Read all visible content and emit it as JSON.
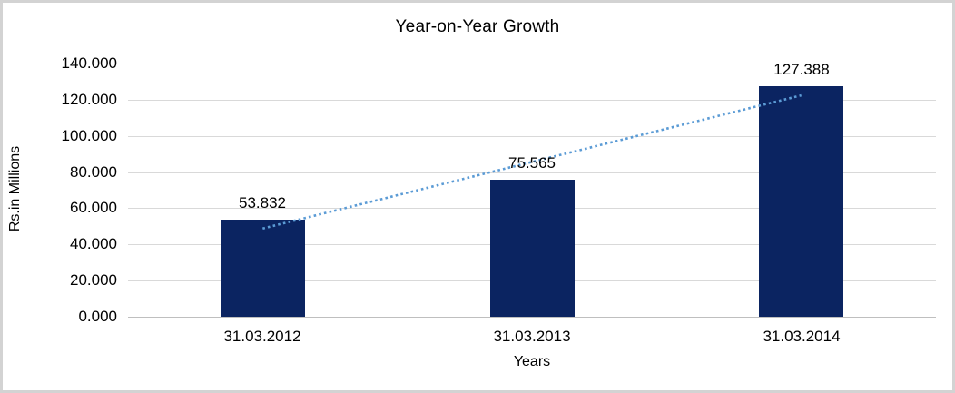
{
  "chart_data": {
    "type": "bar",
    "title": "Year-on-Year Growth",
    "xlabel": "Years",
    "ylabel": "Rs.in Millions",
    "categories": [
      "31.03.2012",
      "31.03.2013",
      "31.03.2014"
    ],
    "values": [
      53.832,
      75.565,
      127.388
    ],
    "data_labels": [
      "53.832",
      "75.565",
      "127.388"
    ],
    "y_ticks": [
      "0.000",
      "20.000",
      "40.000",
      "60.000",
      "80.000",
      "100.000",
      "120.000",
      "140.000"
    ],
    "ylim": [
      0,
      140
    ],
    "y_tick_step": 20,
    "grid": "horizontal",
    "legend": "none",
    "trendline": {
      "type": "linear",
      "style": "dotted"
    },
    "colors": {
      "bar": "#0b2461",
      "trendline": "#5b9bd5",
      "gridline": "#d9d9d9",
      "axis_line": "#bfbfbf",
      "text": "#000000",
      "background": "#ffffff",
      "border": "#d3d3d3"
    }
  }
}
